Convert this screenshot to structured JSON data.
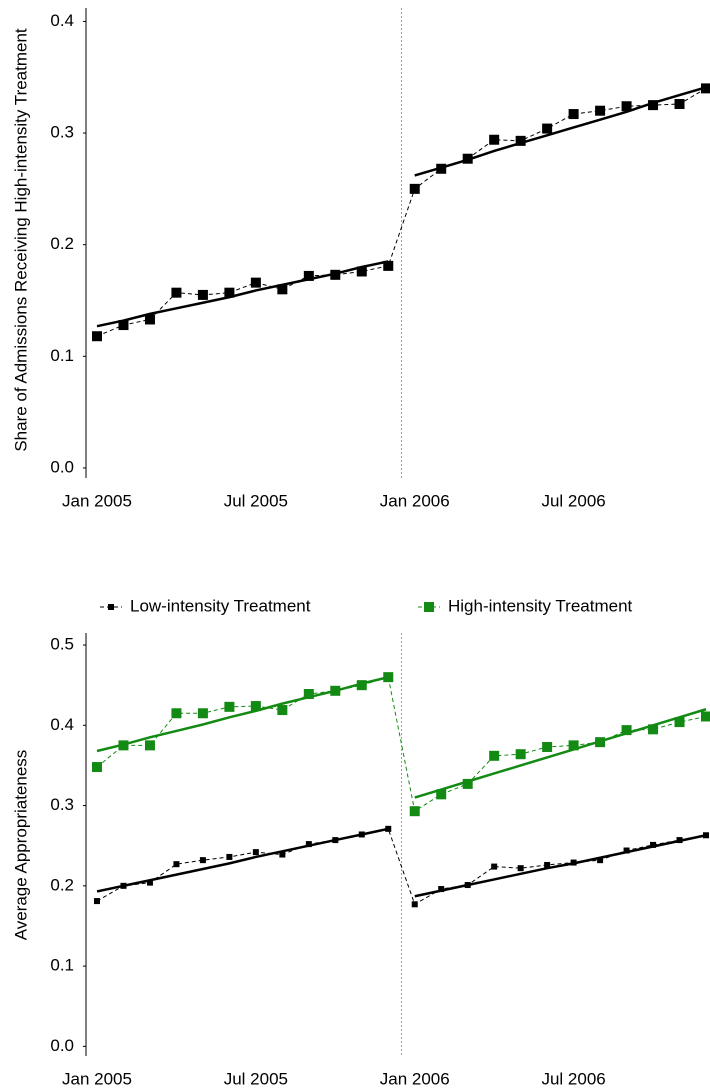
{
  "chart_data": [
    {
      "type": "line",
      "ylabel": "Share of Admissions Receiving High-intensity Treatment",
      "categories": [
        "Jan 2005",
        null,
        null,
        null,
        null,
        null,
        "Jul 2005",
        null,
        null,
        null,
        null,
        null,
        "Jan 2006",
        null,
        null,
        null,
        null,
        null,
        "Jul 2006",
        null,
        null,
        null,
        null,
        null
      ],
      "series": [
        {
          "color": "#000000",
          "values": [
            0.118,
            0.128,
            0.133,
            0.157,
            0.155,
            0.157,
            0.166,
            0.16,
            0.172,
            0.173,
            0.176,
            0.181,
            0.25,
            0.268,
            0.277,
            0.294,
            0.293,
            0.304,
            0.317,
            0.32,
            0.324,
            0.325,
            0.326,
            0.34
          ]
        }
      ],
      "fit_lines": [
        {
          "color": "#000000",
          "values": [
            0.127,
            0.132,
            0.138,
            0.143,
            0.148,
            0.153,
            0.159,
            0.164,
            0.169,
            0.174,
            0.18,
            0.185,
            null,
            null,
            null,
            null,
            null,
            null,
            null,
            null,
            null,
            null,
            null,
            null
          ]
        },
        {
          "color": "#000000",
          "values": [
            null,
            null,
            null,
            null,
            null,
            null,
            null,
            null,
            null,
            null,
            null,
            null,
            0.262,
            0.269,
            0.276,
            0.284,
            0.291,
            0.298,
            0.305,
            0.312,
            0.319,
            0.327,
            0.334,
            0.341
          ]
        }
      ],
      "ylim": [
        -0.009,
        0.412
      ],
      "yticks": [
        {
          "value": 0,
          "label": "0.0"
        },
        0.1,
        0.2,
        0.3,
        0.4
      ]
    },
    {
      "type": "line",
      "ylabel": "Average Appropriateness",
      "legend": "top",
      "categories": [
        "Jan 2005",
        null,
        null,
        null,
        null,
        null,
        "Jul 2005",
        null,
        null,
        null,
        null,
        null,
        "Jan 2006",
        null,
        null,
        null,
        null,
        null,
        "Jul 2006",
        null,
        null,
        null,
        null,
        null
      ],
      "series": [
        {
          "name": "Low-intensity Treatment",
          "color": "#000000",
          "values": [
            0.181,
            0.2,
            0.204,
            0.227,
            0.232,
            0.236,
            0.242,
            0.239,
            0.252,
            0.257,
            0.264,
            0.271,
            0.177,
            0.196,
            0.201,
            0.224,
            0.222,
            0.226,
            0.229,
            0.232,
            0.244,
            0.251,
            0.257,
            0.263
          ]
        },
        {
          "name": "High-intensity Treatment",
          "color": "#138a13",
          "values": [
            0.348,
            0.375,
            0.375,
            0.415,
            0.415,
            0.423,
            0.424,
            0.419,
            0.439,
            0.443,
            0.45,
            0.46,
            0.293,
            0.314,
            0.327,
            0.362,
            0.364,
            0.373,
            0.375,
            0.379,
            0.394,
            0.395,
            0.404,
            0.411
          ]
        }
      ],
      "fit_lines": [
        {
          "color": "#000000",
          "values": [
            0.193,
            0.2,
            0.207,
            0.214,
            0.221,
            0.228,
            0.236,
            0.243,
            0.25,
            0.257,
            0.264,
            0.271,
            null,
            null,
            null,
            null,
            null,
            null,
            null,
            null,
            null,
            null,
            null,
            null
          ]
        },
        {
          "color": "#000000",
          "values": [
            null,
            null,
            null,
            null,
            null,
            null,
            null,
            null,
            null,
            null,
            null,
            null,
            0.187,
            0.194,
            0.201,
            0.208,
            0.215,
            0.222,
            0.228,
            0.235,
            0.242,
            0.249,
            0.256,
            0.263
          ]
        },
        {
          "color": "#138a13",
          "values": [
            0.368,
            0.376,
            0.385,
            0.393,
            0.401,
            0.41,
            0.418,
            0.427,
            0.435,
            0.443,
            0.452,
            0.46,
            null,
            null,
            null,
            null,
            null,
            null,
            null,
            null,
            null,
            null,
            null,
            null
          ]
        },
        {
          "color": "#138a13",
          "values": [
            null,
            null,
            null,
            null,
            null,
            null,
            null,
            null,
            null,
            null,
            null,
            null,
            0.31,
            0.32,
            0.33,
            0.34,
            0.35,
            0.36,
            0.37,
            0.38,
            0.39,
            0.4,
            0.41,
            0.42
          ]
        }
      ],
      "ylim": [
        -0.012,
        0.515
      ],
      "yticks": [
        {
          "value": 0,
          "label": "0.0"
        },
        0.1,
        0.2,
        0.3,
        0.4,
        0.5
      ]
    }
  ]
}
